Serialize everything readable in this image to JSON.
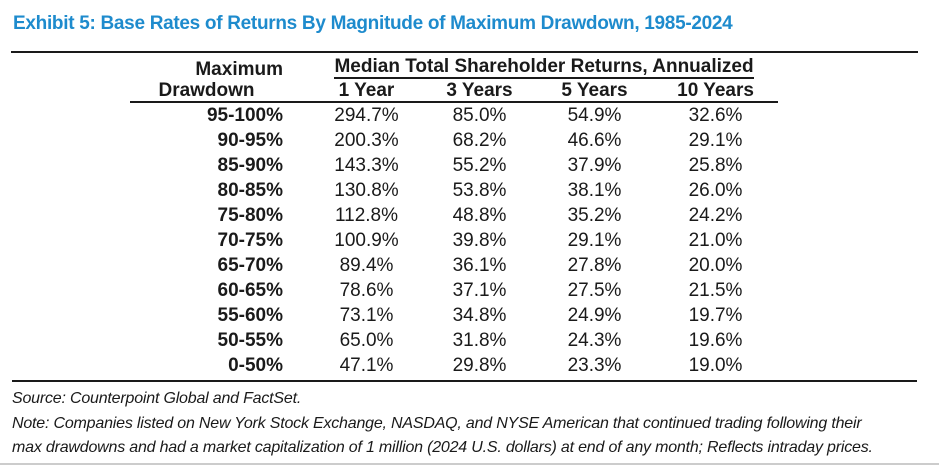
{
  "title": "Exhibit 5: Base Rates of Returns By Magnitude of Maximum Drawdown, 1985-2024",
  "colors": {
    "title_blue": "#1e8bcd",
    "text": "#1a1a1a",
    "rule": "#1a1a1a"
  },
  "table": {
    "row_header_line1": "Maximum",
    "row_header_line2": "Drawdown",
    "col_group_label": "Median Total Shareholder Returns, Annualized",
    "columns": [
      "1 Year",
      "3 Years",
      "5 Years",
      "10 Years"
    ],
    "rows": [
      {
        "drawdown": "95-100%",
        "values": [
          "294.7%",
          "85.0%",
          "54.9%",
          "32.6%"
        ]
      },
      {
        "drawdown": "90-95%",
        "values": [
          "200.3%",
          "68.2%",
          "46.6%",
          "29.1%"
        ]
      },
      {
        "drawdown": "85-90%",
        "values": [
          "143.3%",
          "55.2%",
          "37.9%",
          "25.8%"
        ]
      },
      {
        "drawdown": "80-85%",
        "values": [
          "130.8%",
          "53.8%",
          "38.1%",
          "26.0%"
        ]
      },
      {
        "drawdown": "75-80%",
        "values": [
          "112.8%",
          "48.8%",
          "35.2%",
          "24.2%"
        ]
      },
      {
        "drawdown": "70-75%",
        "values": [
          "100.9%",
          "39.8%",
          "29.1%",
          "21.0%"
        ]
      },
      {
        "drawdown": "65-70%",
        "values": [
          "89.4%",
          "36.1%",
          "27.8%",
          "20.0%"
        ]
      },
      {
        "drawdown": "60-65%",
        "values": [
          "78.6%",
          "37.1%",
          "27.5%",
          "21.5%"
        ]
      },
      {
        "drawdown": "55-60%",
        "values": [
          "73.1%",
          "34.8%",
          "24.9%",
          "19.7%"
        ]
      },
      {
        "drawdown": "50-55%",
        "values": [
          "65.0%",
          "31.8%",
          "24.3%",
          "19.6%"
        ]
      },
      {
        "drawdown": "0-50%",
        "values": [
          "47.1%",
          "29.8%",
          "23.3%",
          "19.0%"
        ]
      }
    ]
  },
  "footer": {
    "source": "Source: Counterpoint Global and FactSet.",
    "note_line1": "Note: Companies listed on New York Stock Exchange, NASDAQ, and NYSE American that continued trading following their",
    "note_line2": "max drawdowns and had a market capitalization of 1 million (2024 U.S. dollars) at end of any month; Reflects intraday prices."
  },
  "chart_data": {
    "type": "table",
    "title": "Exhibit 5: Base Rates of Returns By Magnitude of Maximum Drawdown, 1985-2024",
    "group_header": "Median Total Shareholder Returns, Annualized",
    "columns": [
      "Maximum Drawdown",
      "1 Year",
      "3 Years",
      "5 Years",
      "10 Years"
    ],
    "rows": [
      [
        "95-100%",
        294.7,
        85.0,
        54.9,
        32.6
      ],
      [
        "90-95%",
        200.3,
        68.2,
        46.6,
        29.1
      ],
      [
        "85-90%",
        143.3,
        55.2,
        37.9,
        25.8
      ],
      [
        "80-85%",
        130.8,
        53.8,
        38.1,
        26.0
      ],
      [
        "75-80%",
        112.8,
        48.8,
        35.2,
        24.2
      ],
      [
        "70-75%",
        100.9,
        39.8,
        29.1,
        21.0
      ],
      [
        "65-70%",
        89.4,
        36.1,
        27.8,
        20.0
      ],
      [
        "60-65%",
        78.6,
        37.1,
        27.5,
        21.5
      ],
      [
        "55-60%",
        73.1,
        34.8,
        24.9,
        19.7
      ],
      [
        "50-55%",
        65.0,
        31.8,
        24.3,
        19.6
      ],
      [
        "0-50%",
        47.1,
        29.8,
        23.3,
        19.0
      ]
    ],
    "units": "percent",
    "source": "Counterpoint Global and FactSet"
  }
}
